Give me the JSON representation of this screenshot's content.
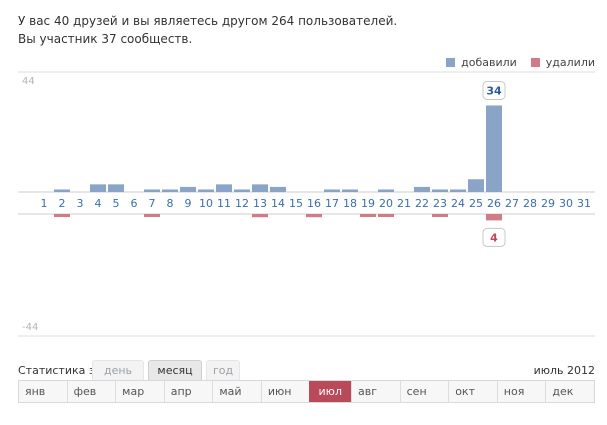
{
  "summary": {
    "line1": "У вас 40 друзей и вы являетесь другом 264 пользователей.",
    "line2": "Вы участник 37 сообществ."
  },
  "legend": {
    "added_label": "добавили",
    "removed_label": "удалили",
    "added_color": "#8aa4c8",
    "removed_color": "#d07b86"
  },
  "chart_data": {
    "type": "bar",
    "categories": [
      "1",
      "2",
      "3",
      "4",
      "5",
      "6",
      "7",
      "8",
      "9",
      "10",
      "11",
      "12",
      "13",
      "14",
      "15",
      "16",
      "17",
      "18",
      "19",
      "20",
      "21",
      "22",
      "23",
      "24",
      "25",
      "26",
      "27",
      "28",
      "29",
      "30",
      "31"
    ],
    "series": [
      {
        "name": "добавили",
        "values": [
          0,
          1,
          0,
          3,
          3,
          0,
          1,
          1,
          2,
          1,
          3,
          1,
          3,
          2,
          0,
          0,
          1,
          1,
          0,
          1,
          0,
          2,
          1,
          1,
          5,
          34,
          0,
          0,
          0,
          0,
          0
        ]
      },
      {
        "name": "удалили",
        "values": [
          0,
          -1,
          0,
          0,
          0,
          0,
          -1,
          0,
          0,
          0,
          0,
          0,
          -2,
          0,
          0,
          -2,
          0,
          0,
          -1,
          -1,
          0,
          0,
          -1,
          0,
          0,
          -4,
          0,
          0,
          0,
          0,
          0
        ]
      }
    ],
    "ylim": [
      -44,
      44
    ],
    "y_top_label": "44",
    "y_bottom_label": "-44",
    "callouts": [
      {
        "day": "26",
        "series": "добавили",
        "label": "34"
      },
      {
        "day": "26",
        "series": "удалили",
        "label": "4"
      }
    ]
  },
  "controls": {
    "stats_label": "Статистика за",
    "periods": [
      {
        "label": "день",
        "state": "inactive"
      },
      {
        "label": "месяц",
        "state": "active"
      },
      {
        "label": "год",
        "state": "inactive"
      }
    ],
    "date_label": "июль 2012"
  },
  "months": [
    {
      "label": "янв",
      "active": false
    },
    {
      "label": "фев",
      "active": false
    },
    {
      "label": "мар",
      "active": false
    },
    {
      "label": "апр",
      "active": false
    },
    {
      "label": "май",
      "active": false
    },
    {
      "label": "июн",
      "active": false
    },
    {
      "label": "июл",
      "active": true
    },
    {
      "label": "авг",
      "active": false
    },
    {
      "label": "сен",
      "active": false
    },
    {
      "label": "окт",
      "active": false
    },
    {
      "label": "ноя",
      "active": false
    },
    {
      "label": "дек",
      "active": false
    }
  ]
}
